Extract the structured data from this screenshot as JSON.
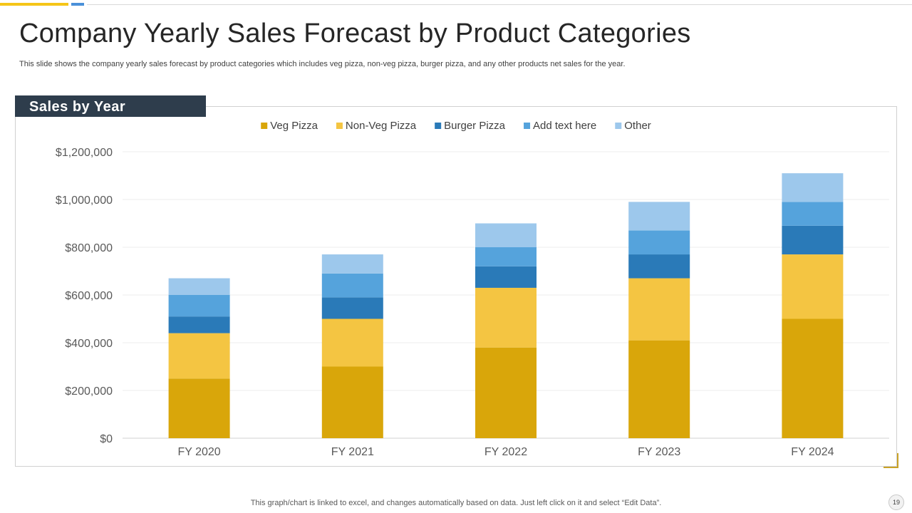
{
  "slide": {
    "title": "Company Yearly Sales Forecast by Product Categories",
    "subtitle": "This slide shows the company yearly  sales forecast by product categories which includes veg pizza,  non-veg pizza,  burger pizza,  and any other products net sales for the year.",
    "section_header": "Sales by Year",
    "footer_note": "This graph/chart is linked to excel,  and changes automatically based on data. Just left click on it and select “Edit Data”.",
    "page_number": "19"
  },
  "colors": {
    "accent_yellow": "#f5c518",
    "accent_blue": "#4a90d9",
    "gridline": "#ececec",
    "axis": "#d0d0d0",
    "tick_text": "#595959"
  },
  "chart_data": {
    "type": "bar",
    "stacked": true,
    "title": "",
    "xlabel": "",
    "ylabel": "",
    "ylim": [
      0,
      1200000
    ],
    "yticks": [
      0,
      200000,
      400000,
      600000,
      800000,
      1000000,
      1200000
    ],
    "ytick_labels": [
      "$0",
      "$200,000",
      "$400,000",
      "$600,000",
      "$800,000",
      "$1,000,000",
      "$1,200,000"
    ],
    "grid": true,
    "legend_position": "top-center",
    "categories": [
      "FY 2020",
      "FY 2021",
      "FY 2022",
      "FY 2023",
      "FY 2024"
    ],
    "series": [
      {
        "name": "Veg Pizza",
        "color": "#d9a60a",
        "values": [
          250000,
          300000,
          380000,
          410000,
          500000
        ]
      },
      {
        "name": "Non-Veg Pizza",
        "color": "#f4c542",
        "values": [
          190000,
          200000,
          250000,
          260000,
          270000
        ]
      },
      {
        "name": "Burger Pizza",
        "color": "#2a7ab8",
        "values": [
          70000,
          90000,
          90000,
          100000,
          120000
        ]
      },
      {
        "name": "Add text here",
        "color": "#55a3dc",
        "values": [
          90000,
          100000,
          80000,
          100000,
          100000
        ]
      },
      {
        "name": "Other",
        "color": "#9dc8ec",
        "values": [
          70000,
          80000,
          100000,
          120000,
          120000
        ]
      }
    ]
  }
}
